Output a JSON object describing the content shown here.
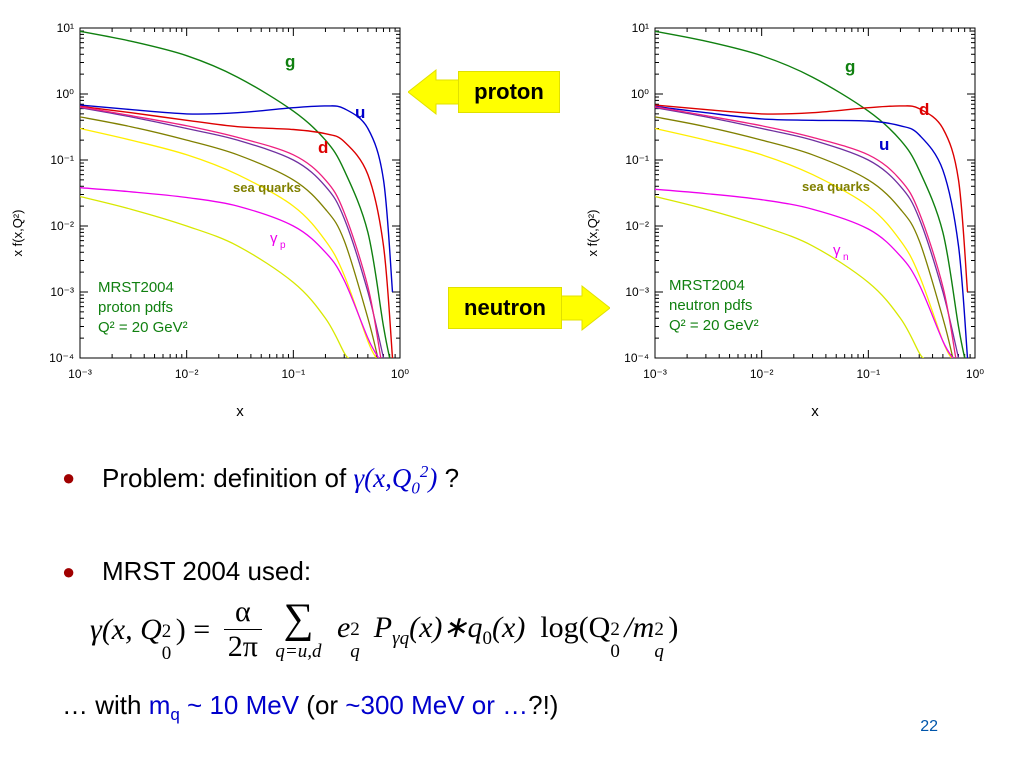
{
  "colors": {
    "g": "#108010",
    "u": "#0000cc",
    "d": "#dd0000",
    "sea": "#808000",
    "gamma": "#ee00ee",
    "ubar": "#7030a0",
    "dbar": "#ee2080",
    "s": "#ffee00",
    "c": "#d8e800",
    "b": "#906040",
    "accent": "#ffff00",
    "bullet": "#a00000",
    "blue": "#0000cc"
  },
  "chart_data": [
    {
      "type": "line",
      "title": "",
      "xlabel": "x",
      "ylabel": "x f(x,Q²)",
      "xscale": "log",
      "yscale": "log",
      "xlim": [
        0.001,
        1
      ],
      "ylim": [
        0.0001,
        10
      ],
      "xticks": [
        "10⁻³",
        "10⁻²",
        "10⁻¹",
        "10⁰"
      ],
      "yticks": [
        "10⁻⁴",
        "10⁻³",
        "10⁻²",
        "10⁻¹",
        "10⁰",
        "10¹"
      ],
      "annotation": [
        "MRST2004",
        "proton pdfs",
        "Q² = 20 GeV²"
      ],
      "labels": {
        "g": "g",
        "u": "u",
        "d": "d",
        "sea": "sea quarks",
        "gamma": "γ",
        "gamma_sub": "p"
      },
      "series": [
        {
          "key": "g",
          "x": [
            0.001,
            0.003,
            0.01,
            0.03,
            0.1,
            0.2,
            0.3,
            0.5,
            0.7,
            0.8
          ],
          "y": [
            8.9,
            6.3,
            3.8,
            1.8,
            0.55,
            0.2,
            0.07,
            0.008,
            0.0003,
            0.0001
          ]
        },
        {
          "key": "u",
          "x": [
            0.001,
            0.003,
            0.01,
            0.03,
            0.1,
            0.2,
            0.3,
            0.5,
            0.7,
            0.85
          ],
          "y": [
            0.68,
            0.58,
            0.5,
            0.52,
            0.62,
            0.66,
            0.6,
            0.3,
            0.05,
            0.001
          ]
        },
        {
          "key": "d",
          "x": [
            0.001,
            0.003,
            0.01,
            0.03,
            0.1,
            0.2,
            0.3,
            0.5,
            0.7,
            0.85
          ],
          "y": [
            0.65,
            0.52,
            0.4,
            0.32,
            0.29,
            0.25,
            0.19,
            0.06,
            0.005,
            0.0001
          ]
        },
        {
          "key": "ubar",
          "x": [
            0.001,
            0.003,
            0.01,
            0.03,
            0.1,
            0.2,
            0.3,
            0.5,
            0.7
          ],
          "y": [
            0.62,
            0.45,
            0.3,
            0.2,
            0.1,
            0.04,
            0.013,
            0.001,
            0.0001
          ]
        },
        {
          "key": "dbar",
          "x": [
            0.001,
            0.003,
            0.01,
            0.03,
            0.1,
            0.2,
            0.3,
            0.5,
            0.66
          ],
          "y": [
            0.64,
            0.47,
            0.33,
            0.22,
            0.12,
            0.05,
            0.016,
            0.0012,
            0.0001
          ]
        },
        {
          "key": "sea",
          "x": [
            0.001,
            0.003,
            0.01,
            0.03,
            0.1,
            0.2,
            0.3,
            0.5,
            0.62
          ],
          "y": [
            0.45,
            0.32,
            0.2,
            0.12,
            0.05,
            0.018,
            0.006,
            0.0004,
            0.0001
          ]
        },
        {
          "key": "s",
          "x": [
            0.001,
            0.003,
            0.01,
            0.03,
            0.1,
            0.2,
            0.3,
            0.5,
            0.6
          ],
          "y": [
            0.3,
            0.2,
            0.12,
            0.06,
            0.02,
            0.006,
            0.0018,
            0.00018,
            0.0001
          ]
        },
        {
          "key": "c",
          "x": [
            0.001,
            0.003,
            0.01,
            0.03,
            0.1,
            0.2,
            0.3,
            0.33
          ],
          "y": [
            0.028,
            0.018,
            0.01,
            0.005,
            0.0014,
            0.0004,
            0.00012,
            0.0001
          ]
        },
        {
          "key": "gamma",
          "x": [
            0.001,
            0.003,
            0.01,
            0.03,
            0.1,
            0.2,
            0.3,
            0.5,
            0.63
          ],
          "y": [
            0.038,
            0.033,
            0.027,
            0.02,
            0.01,
            0.004,
            0.0015,
            0.0002,
            0.0001
          ]
        }
      ]
    },
    {
      "type": "line",
      "title": "",
      "xlabel": "x",
      "ylabel": "x f(x,Q²)",
      "xscale": "log",
      "yscale": "log",
      "xlim": [
        0.001,
        1
      ],
      "ylim": [
        0.0001,
        10
      ],
      "xticks": [
        "10⁻³",
        "10⁻²",
        "10⁻¹",
        "10⁰"
      ],
      "yticks": [
        "10⁻⁴",
        "10⁻³",
        "10⁻²",
        "10⁻¹",
        "10⁰",
        "10¹"
      ],
      "annotation": [
        "MRST2004",
        "neutron pdfs",
        "Q² = 20 GeV²"
      ],
      "labels": {
        "g": "g",
        "u": "u",
        "d": "d",
        "sea": "sea quarks",
        "gamma": "γ",
        "gamma_sub": "n"
      },
      "series": [
        {
          "key": "g",
          "x": [
            0.001,
            0.003,
            0.01,
            0.03,
            0.1,
            0.2,
            0.3,
            0.5,
            0.7,
            0.8
          ],
          "y": [
            8.9,
            6.3,
            3.8,
            1.8,
            0.55,
            0.2,
            0.07,
            0.008,
            0.0003,
            0.0001
          ]
        },
        {
          "key": "d",
          "x": [
            0.001,
            0.003,
            0.01,
            0.03,
            0.1,
            0.2,
            0.3,
            0.5,
            0.7,
            0.85
          ],
          "y": [
            0.68,
            0.58,
            0.5,
            0.52,
            0.62,
            0.66,
            0.6,
            0.3,
            0.05,
            0.001
          ]
        },
        {
          "key": "u",
          "x": [
            0.001,
            0.003,
            0.01,
            0.03,
            0.1,
            0.2,
            0.3,
            0.5,
            0.7,
            0.85
          ],
          "y": [
            0.65,
            0.52,
            0.42,
            0.4,
            0.39,
            0.33,
            0.24,
            0.07,
            0.005,
            0.0001
          ]
        },
        {
          "key": "ubar",
          "x": [
            0.001,
            0.003,
            0.01,
            0.03,
            0.1,
            0.2,
            0.3,
            0.5,
            0.7
          ],
          "y": [
            0.62,
            0.45,
            0.3,
            0.2,
            0.1,
            0.04,
            0.013,
            0.001,
            0.0001
          ]
        },
        {
          "key": "dbar",
          "x": [
            0.001,
            0.003,
            0.01,
            0.03,
            0.1,
            0.2,
            0.3,
            0.5,
            0.66
          ],
          "y": [
            0.64,
            0.47,
            0.33,
            0.22,
            0.12,
            0.05,
            0.016,
            0.0012,
            0.0001
          ]
        },
        {
          "key": "sea",
          "x": [
            0.001,
            0.003,
            0.01,
            0.03,
            0.1,
            0.2,
            0.3,
            0.5,
            0.62
          ],
          "y": [
            0.45,
            0.32,
            0.2,
            0.12,
            0.05,
            0.018,
            0.006,
            0.0004,
            0.0001
          ]
        },
        {
          "key": "s",
          "x": [
            0.001,
            0.003,
            0.01,
            0.03,
            0.1,
            0.2,
            0.3,
            0.5,
            0.6
          ],
          "y": [
            0.3,
            0.2,
            0.12,
            0.06,
            0.02,
            0.006,
            0.0018,
            0.00018,
            0.0001
          ]
        },
        {
          "key": "c",
          "x": [
            0.001,
            0.003,
            0.01,
            0.03,
            0.1,
            0.2,
            0.3,
            0.33
          ],
          "y": [
            0.028,
            0.018,
            0.01,
            0.005,
            0.0014,
            0.0004,
            0.00012,
            0.0001
          ]
        },
        {
          "key": "gamma",
          "x": [
            0.001,
            0.003,
            0.01,
            0.03,
            0.1,
            0.2,
            0.3,
            0.5,
            0.62
          ],
          "y": [
            0.036,
            0.031,
            0.025,
            0.018,
            0.009,
            0.0035,
            0.0013,
            0.00018,
            0.0001
          ]
        }
      ]
    }
  ],
  "badges": {
    "proton": "proton",
    "neutron": "neutron"
  },
  "bullets": {
    "b1_prefix": "Problem: definition of ",
    "b1_gamma": "γ(x,Q",
    "b1_sub": "0",
    "b1_sup": "2",
    "b1_close": ")",
    "b1_suffix": " ?",
    "b2": "MRST 2004 used:"
  },
  "formula": {
    "lhs": "γ(x, Q",
    "lhs_sub": "0",
    "lhs_sup": "2",
    "lhs_close": ") =",
    "num": "α",
    "den": "2π",
    "sum": "∑",
    "sum_sub": "q=u,d",
    "e": "e",
    "e_sub": "q",
    "e_sup": "2",
    "P": "P",
    "P_sub": "γq",
    "mid": "(x)∗q",
    "q_sub": "0",
    "mid2": "(x)",
    "log": "log(Q",
    "log_sub": "0",
    "log_sup": "2",
    "slash": "/m",
    "m_sub": "q",
    "m_sup": "2",
    "end": ")"
  },
  "footnote": {
    "a": "… with ",
    "mq": "m",
    "mq_sub": "q",
    "b": " ~ 10 MeV",
    "c": " (or ",
    "d": "~300 MeV or …",
    "e": "?!)"
  },
  "page_number": "22"
}
